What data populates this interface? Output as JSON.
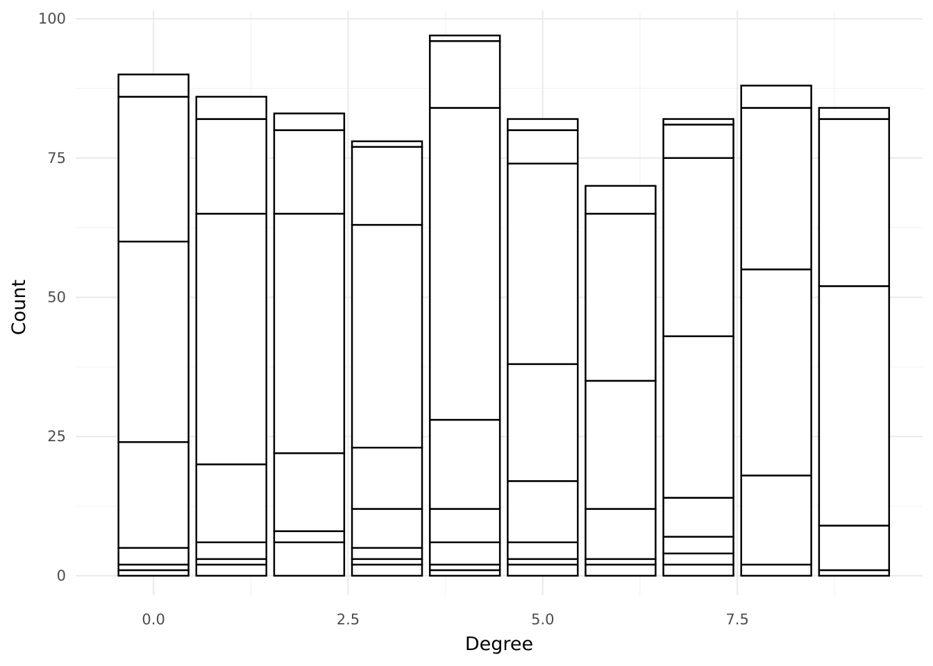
{
  "chart_data": {
    "type": "bar",
    "stacked": true,
    "xlabel": "Degree",
    "ylabel": "Count",
    "xlim": [
      -0.5,
      9.5
    ],
    "ylim": [
      0,
      100
    ],
    "x_ticks": [
      "0.0",
      "2.5",
      "5.0",
      "7.5"
    ],
    "x_tick_values": [
      0,
      2.5,
      5,
      7.5
    ],
    "y_ticks": [
      "0",
      "25",
      "50",
      "75",
      "100"
    ],
    "y_tick_values": [
      0,
      25,
      50,
      75,
      100
    ],
    "grid": true,
    "fill_color": "#ffffff",
    "outline_color": "#000000",
    "x": [
      0,
      1,
      2,
      3,
      4,
      5,
      6,
      7,
      8,
      9
    ],
    "stack_boundaries": [
      [
        1,
        2,
        5,
        24,
        60,
        86,
        90
      ],
      [
        2,
        3,
        6,
        20,
        65,
        82,
        86
      ],
      [
        6,
        8,
        22,
        65,
        80,
        83
      ],
      [
        2,
        3,
        5,
        12,
        23,
        63,
        77,
        78
      ],
      [
        1,
        2,
        6,
        12,
        28,
        84,
        96,
        97
      ],
      [
        2,
        3,
        6,
        17,
        38,
        74,
        80,
        82
      ],
      [
        2,
        3,
        12,
        35,
        65,
        70
      ],
      [
        2,
        4,
        7,
        14,
        43,
        75,
        81,
        82
      ],
      [
        2,
        18,
        55,
        84,
        88
      ],
      [
        1,
        9,
        52,
        82,
        84
      ]
    ]
  }
}
